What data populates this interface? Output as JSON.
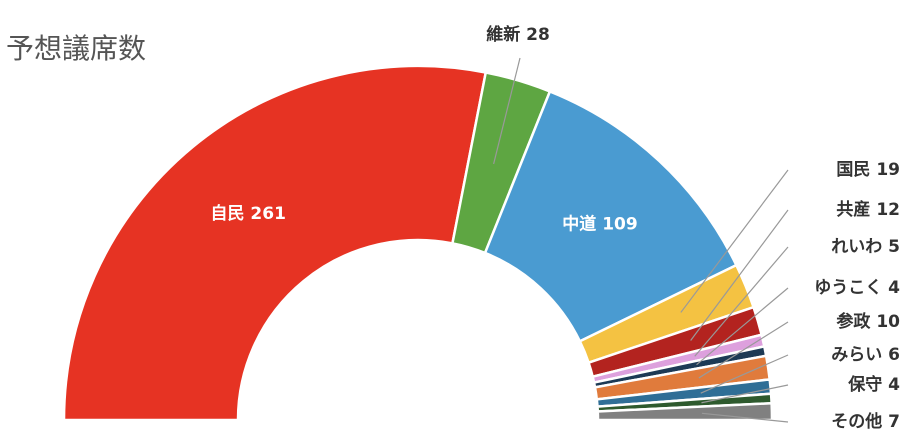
{
  "chart_data": {
    "type": "half-donut",
    "title": "予想議席数",
    "categories": [
      "自民",
      "維新",
      "中道",
      "国民",
      "共産",
      "れいわ",
      "ゆうこく",
      "参政",
      "みらい",
      "保守",
      "その他"
    ],
    "values": [
      261,
      28,
      109,
      19,
      12,
      5,
      4,
      10,
      6,
      4,
      7
    ],
    "colors": [
      "#e63323",
      "#5ea642",
      "#4a9bd1",
      "#f4c242",
      "#b3231f",
      "#dda0dd",
      "#1d3a55",
      "#e07b3c",
      "#2f6e96",
      "#2e5a2e",
      "#808080"
    ]
  }
}
